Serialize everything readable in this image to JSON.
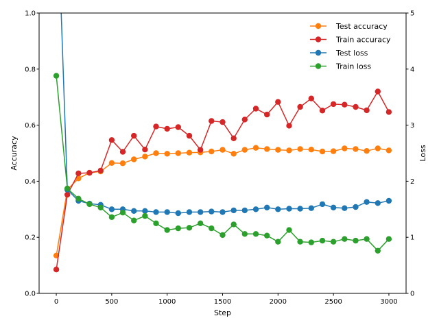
{
  "chart_data": {
    "type": "line",
    "title": "",
    "xlabel": "Step",
    "ylabel_left": "Accuracy",
    "ylabel_right": "Loss",
    "xlim": [
      -155,
      3155
    ],
    "ylim_left": [
      0.0,
      1.0
    ],
    "ylim_right": [
      0,
      5
    ],
    "xticks": [
      0,
      500,
      1000,
      1500,
      2000,
      2500,
      3000
    ],
    "yticks_left": [
      0.0,
      0.2,
      0.4,
      0.6,
      0.8,
      1.0
    ],
    "yticks_right": [
      0,
      1,
      2,
      3,
      4,
      5
    ],
    "xtick_labels": [
      "0",
      "500",
      "1000",
      "1500",
      "2000",
      "2500",
      "3000"
    ],
    "ytick_labels_left": [
      "0.0",
      "0.2",
      "0.4",
      "0.6",
      "0.8",
      "1.0"
    ],
    "ytick_labels_right": [
      "0",
      "1",
      "2",
      "3",
      "4",
      "5"
    ],
    "grid": false,
    "legend_position": "top-right",
    "x": [
      0,
      100,
      200,
      300,
      400,
      500,
      600,
      700,
      800,
      900,
      1000,
      1100,
      1200,
      1300,
      1400,
      1500,
      1600,
      1700,
      1800,
      1900,
      2000,
      2100,
      2200,
      2300,
      2400,
      2500,
      2600,
      2700,
      2800,
      2900,
      3000
    ],
    "series": [
      {
        "name": "Test accuracy",
        "axis": "left",
        "color": "#ff7f0e",
        "values": [
          0.135,
          0.37,
          0.41,
          0.43,
          0.435,
          0.465,
          0.464,
          0.478,
          0.488,
          0.5,
          0.498,
          0.5,
          0.502,
          0.503,
          0.506,
          0.512,
          0.498,
          0.512,
          0.519,
          0.515,
          0.512,
          0.51,
          0.515,
          0.513,
          0.506,
          0.507,
          0.517,
          0.515,
          0.508,
          0.517,
          0.51
        ]
      },
      {
        "name": "Train accuracy",
        "axis": "left",
        "color": "#d62728",
        "values": [
          0.085,
          0.352,
          0.428,
          0.43,
          0.438,
          0.547,
          0.505,
          0.562,
          0.513,
          0.595,
          0.587,
          0.593,
          0.562,
          0.512,
          0.615,
          0.611,
          0.553,
          0.62,
          0.659,
          0.638,
          0.683,
          0.598,
          0.665,
          0.695,
          0.652,
          0.675,
          0.673,
          0.665,
          0.653,
          0.72,
          0.647
        ]
      },
      {
        "name": "Test loss",
        "axis": "right",
        "color": "#1f77b4",
        "values": [
          7.5,
          1.85,
          1.65,
          1.6,
          1.58,
          1.5,
          1.5,
          1.47,
          1.47,
          1.45,
          1.45,
          1.43,
          1.45,
          1.45,
          1.46,
          1.45,
          1.48,
          1.48,
          1.5,
          1.53,
          1.5,
          1.51,
          1.51,
          1.52,
          1.59,
          1.53,
          1.52,
          1.54,
          1.63,
          1.61,
          1.65
        ]
      },
      {
        "name": "Train loss",
        "axis": "right",
        "color": "#2ca02c",
        "values": [
          3.88,
          1.87,
          1.69,
          1.59,
          1.53,
          1.36,
          1.44,
          1.3,
          1.38,
          1.25,
          1.13,
          1.16,
          1.17,
          1.25,
          1.16,
          1.04,
          1.23,
          1.06,
          1.06,
          1.03,
          0.92,
          1.13,
          0.92,
          0.91,
          0.94,
          0.92,
          0.97,
          0.94,
          0.97,
          0.76,
          0.97
        ]
      }
    ]
  }
}
